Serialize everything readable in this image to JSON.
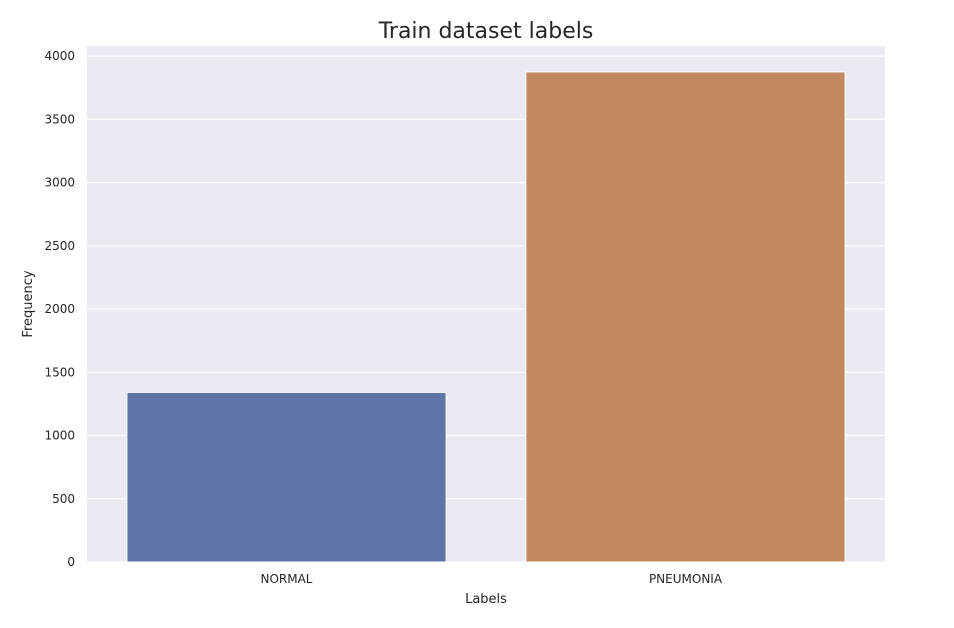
{
  "chart_data": {
    "type": "bar",
    "title": "Train dataset labels",
    "xlabel": "Labels",
    "ylabel": "Frequency",
    "categories": [
      "NORMAL",
      "PNEUMONIA"
    ],
    "values": [
      1341,
      3875
    ],
    "ylim": [
      0,
      4080
    ],
    "yticks": [
      0,
      500,
      1000,
      1500,
      2000,
      2500,
      3000,
      3500,
      4000
    ],
    "grid": true,
    "colors": {
      "bars": [
        "#5d74a5",
        "#c28860"
      ],
      "plot_background": "#eaeaf2",
      "grid": "#ffffff"
    }
  }
}
